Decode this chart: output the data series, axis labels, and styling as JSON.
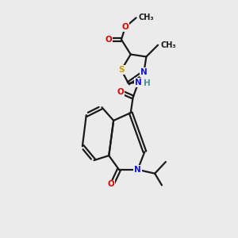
{
  "bg_color": "#ebebeb",
  "bond_color": "#1a1a1a",
  "atom_colors": {
    "O": "#e00000",
    "N": "#1414e0",
    "S": "#c8a000",
    "C": "#1a1a1a",
    "H": "#4a9090"
  },
  "figsize": [
    3.0,
    3.0
  ],
  "dpi": 100,
  "lw": 1.6,
  "fs": 7.5
}
